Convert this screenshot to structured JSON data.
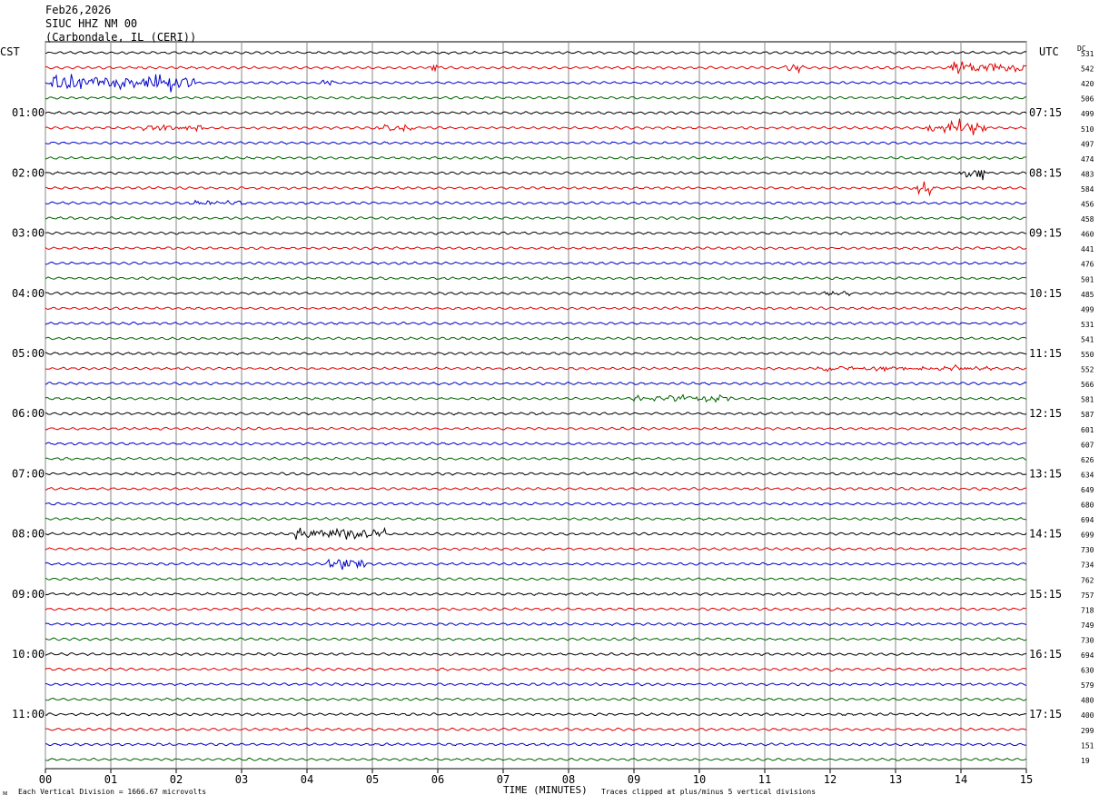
{
  "header": {
    "date": "Feb26,2026",
    "station": "SIUC HHZ NM 00",
    "location": "(Carbondale, IL (CERI))"
  },
  "left_tz": "CST",
  "right_tz": "UTC",
  "dc_label": "DC",
  "footer": {
    "scale_note": "Each Vertical Division = 1666.67 microvolts",
    "xlabel": "TIME (MINUTES)",
    "clip_note": "Traces clipped at plus/minus 5 vertical divisions"
  },
  "chart_data": {
    "type": "line",
    "xlabel": "TIME (MINUTES)",
    "xlim": [
      0,
      15
    ],
    "x_ticks": [
      "00",
      "01",
      "02",
      "03",
      "04",
      "05",
      "06",
      "07",
      "08",
      "09",
      "10",
      "11",
      "12",
      "13",
      "14",
      "15"
    ],
    "trace_colors": [
      "#000000",
      "#e00000",
      "#0000c8",
      "#006400"
    ],
    "grid": true,
    "left_hour_labels": [
      "01:00",
      "02:00",
      "03:00",
      "04:00",
      "05:00",
      "06:00",
      "07:00",
      "08:00",
      "09:00",
      "10:00",
      "11:00"
    ],
    "right_hour_labels": [
      "07:15",
      "08:15",
      "09:15",
      "10:15",
      "11:15",
      "12:15",
      "13:15",
      "14:15",
      "15:15",
      "16:15",
      "17:15"
    ],
    "trace_offsets_dc": [
      "531",
      "542",
      "420",
      "506",
      "499",
      "510",
      "497",
      "474",
      "483",
      "584",
      "456",
      "458",
      "460",
      "441",
      "476",
      "501",
      "485",
      "499",
      "531",
      "541",
      "550",
      "552",
      "566",
      "581",
      "587",
      "601",
      "607",
      "626",
      "634",
      "649",
      "680",
      "694",
      "699",
      "730",
      "734",
      "762",
      "757",
      "718",
      "749",
      "730",
      "694",
      "630",
      "579",
      "480",
      "400",
      "299",
      "151",
      "19"
    ],
    "events": [
      {
        "trace": 1,
        "start_min": 5.9,
        "end_min": 6.0,
        "amp": 9
      },
      {
        "trace": 1,
        "start_min": 11.3,
        "end_min": 11.6,
        "amp": 5
      },
      {
        "trace": 1,
        "start_min": 13.8,
        "end_min": 15.0,
        "amp": 8
      },
      {
        "trace": 2,
        "start_min": 0.1,
        "end_min": 2.3,
        "amp": 12
      },
      {
        "trace": 2,
        "start_min": 4.2,
        "end_min": 4.4,
        "amp": 6
      },
      {
        "trace": 5,
        "start_min": 1.5,
        "end_min": 2.4,
        "amp": 4
      },
      {
        "trace": 5,
        "start_min": 5.1,
        "end_min": 5.6,
        "amp": 4
      },
      {
        "trace": 5,
        "start_min": 13.5,
        "end_min": 14.4,
        "amp": 9
      },
      {
        "trace": 8,
        "start_min": 14.0,
        "end_min": 14.4,
        "amp": 10
      },
      {
        "trace": 9,
        "start_min": 13.3,
        "end_min": 13.6,
        "amp": 8
      },
      {
        "trace": 10,
        "start_min": 2.2,
        "end_min": 3.0,
        "amp": 3
      },
      {
        "trace": 16,
        "start_min": 11.9,
        "end_min": 12.3,
        "amp": 3
      },
      {
        "trace": 21,
        "start_min": 11.8,
        "end_min": 14.5,
        "amp": 3
      },
      {
        "trace": 23,
        "start_min": 9.0,
        "end_min": 10.5,
        "amp": 5
      },
      {
        "trace": 32,
        "start_min": 3.8,
        "end_min": 5.2,
        "amp": 7
      },
      {
        "trace": 34,
        "start_min": 4.3,
        "end_min": 4.9,
        "amp": 9
      },
      {
        "trace": 41,
        "start_min": 12.0,
        "end_min": 12.2,
        "amp": 3
      },
      {
        "trace": 41,
        "start_min": 13.5,
        "end_min": 13.6,
        "amp": 3
      }
    ]
  }
}
